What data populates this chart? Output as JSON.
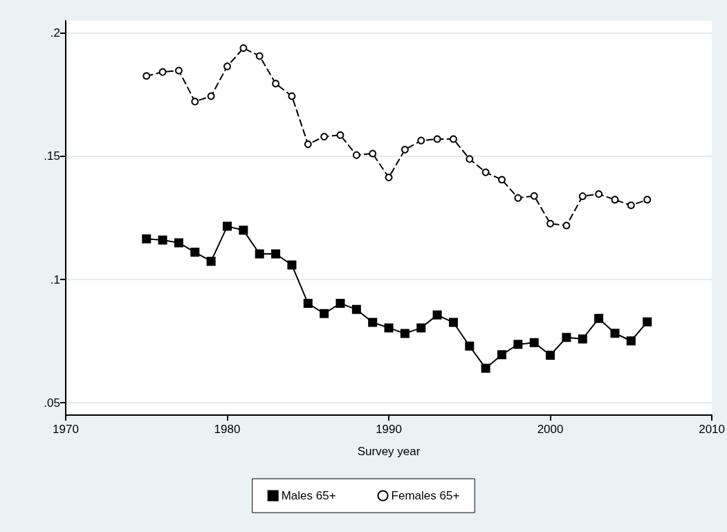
{
  "chart_data": {
    "type": "line",
    "xlabel": "Survey year",
    "x": [
      1975,
      1976,
      1977,
      1978,
      1979,
      1980,
      1981,
      1982,
      1983,
      1984,
      1985,
      1986,
      1987,
      1988,
      1989,
      1990,
      1991,
      1992,
      1993,
      1994,
      1995,
      1996,
      1997,
      1998,
      1999,
      2000,
      2001,
      2002,
      2003,
      2004,
      2005,
      2006
    ],
    "series": [
      {
        "name": "Males 65+",
        "color": "#000000",
        "marker": "square",
        "line_style": "solid",
        "values": [
          0.1165,
          0.116,
          0.1149,
          0.1111,
          0.1074,
          0.1216,
          0.12,
          0.1104,
          0.1104,
          0.1059,
          0.0903,
          0.0862,
          0.0903,
          0.0879,
          0.0826,
          0.0804,
          0.0781,
          0.0804,
          0.0856,
          0.0826,
          0.073,
          0.064,
          0.0695,
          0.0737,
          0.0744,
          0.0693,
          0.0765,
          0.0759,
          0.0842,
          0.0782,
          0.0751,
          0.0828
        ]
      },
      {
        "name": "Females 65+",
        "color": "#000000",
        "marker": "circle",
        "line_style": "dashed",
        "values": [
          0.1826,
          0.1842,
          0.1848,
          0.1722,
          0.1744,
          0.1865,
          0.1939,
          0.1907,
          0.1795,
          0.1744,
          0.1549,
          0.158,
          0.1586,
          0.1505,
          0.1511,
          0.1414,
          0.1527,
          0.1564,
          0.157,
          0.157,
          0.1489,
          0.1435,
          0.1405,
          0.1331,
          0.1339,
          0.1227,
          0.1219,
          0.1338,
          0.1347,
          0.1324,
          0.1301,
          0.1324
        ]
      }
    ],
    "xlim": [
      1970,
      2010
    ],
    "xticks": [
      1970,
      1980,
      1990,
      2000,
      2010
    ],
    "ylim": [
      0.045,
      0.205
    ],
    "yticks": [
      {
        "value": 0.05,
        "label": ".05"
      },
      {
        "value": 0.1,
        "label": ".1"
      },
      {
        "value": 0.15,
        "label": ".15"
      },
      {
        "value": 0.2,
        "label": ".2"
      }
    ],
    "grid": "y",
    "legend": "bottom"
  }
}
